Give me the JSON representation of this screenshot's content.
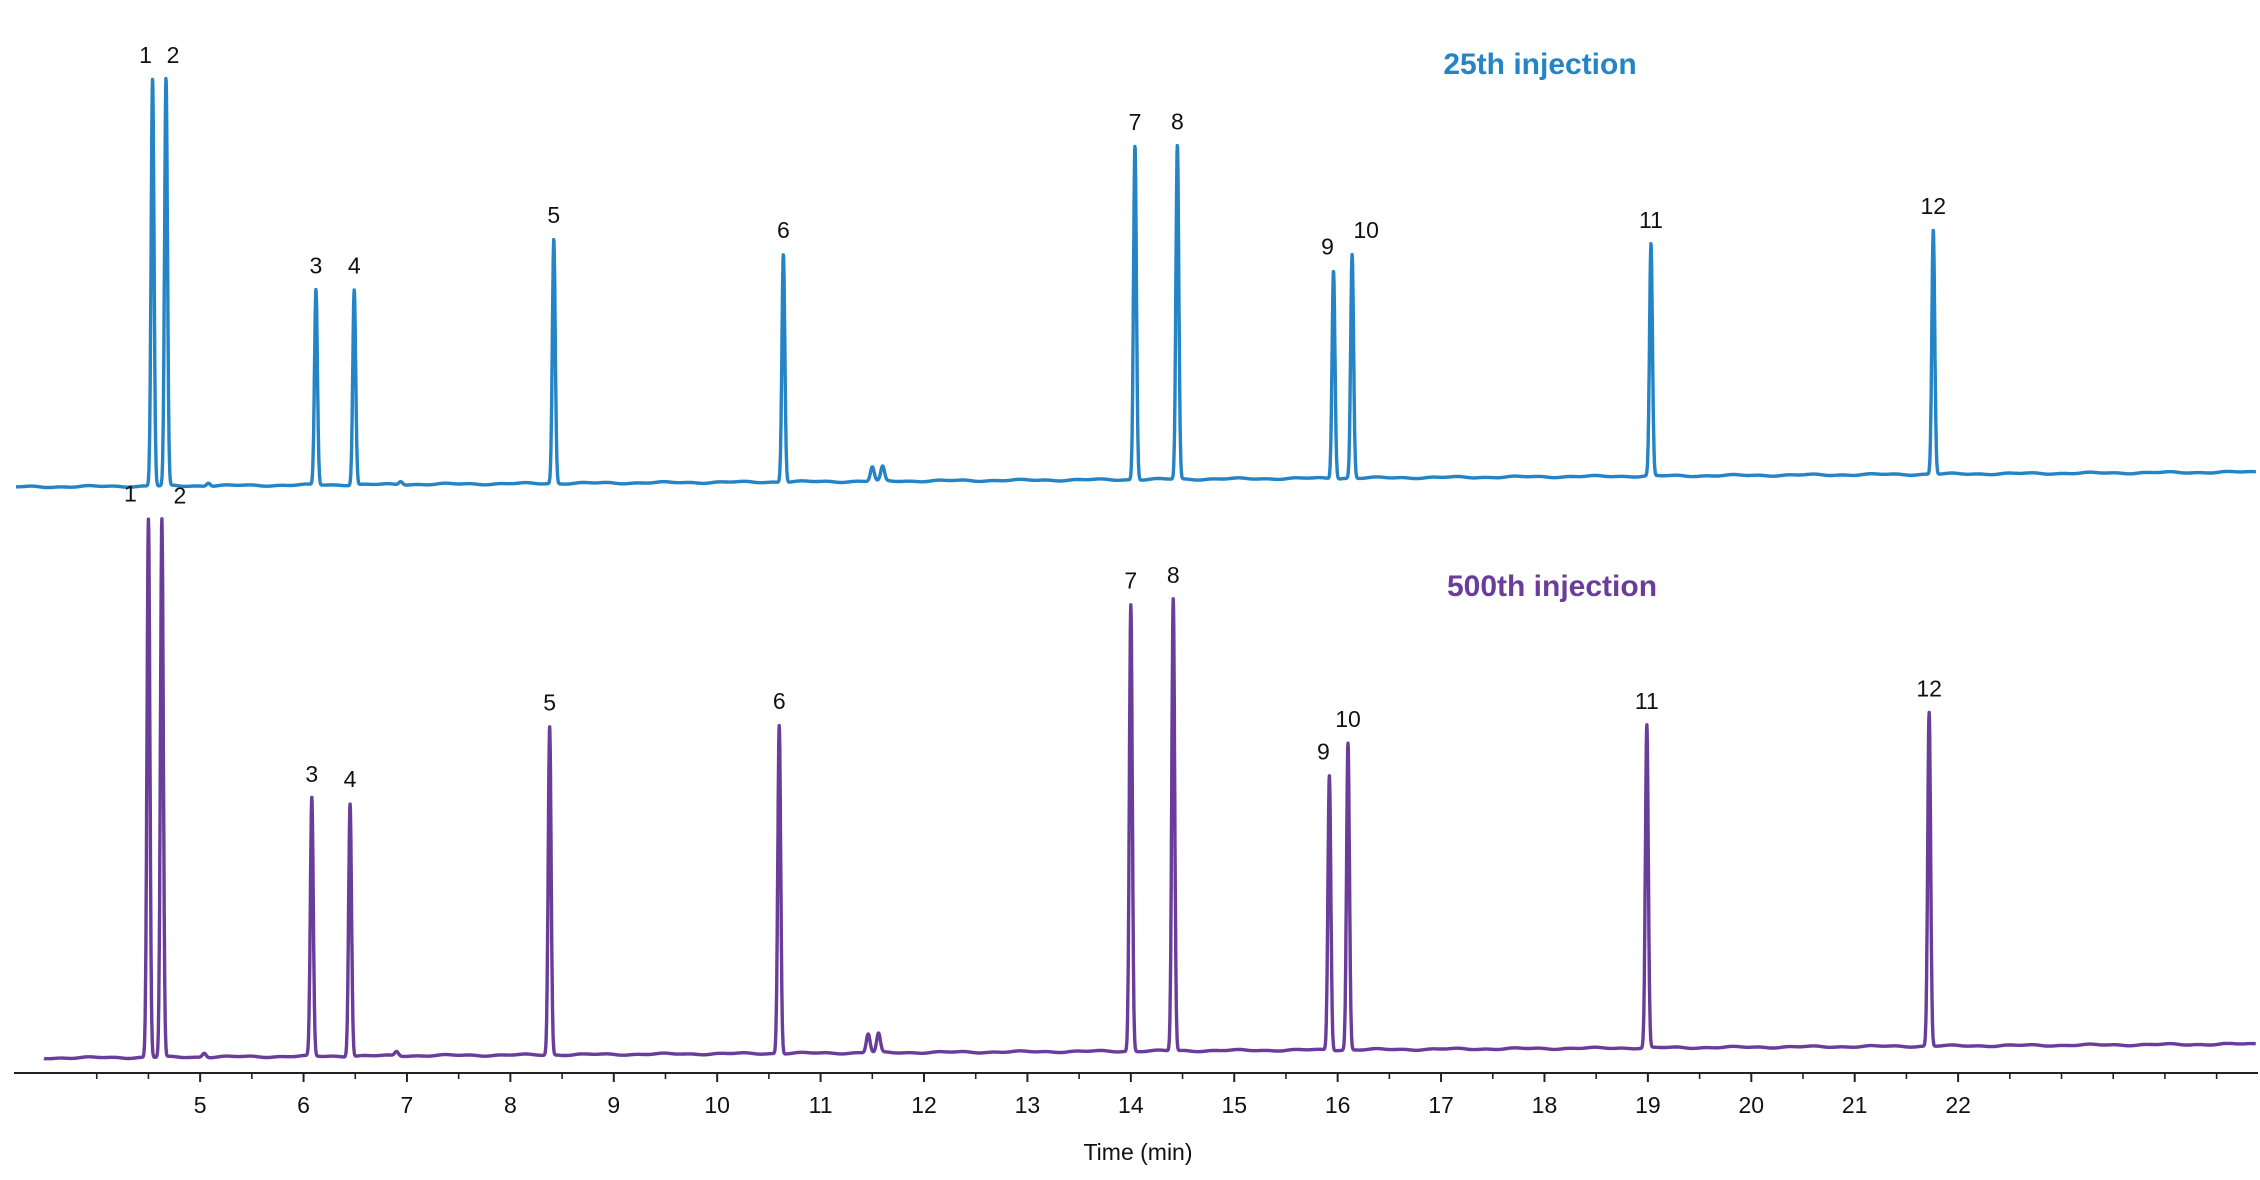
{
  "chart_data": {
    "type": "line",
    "title": "",
    "xlabel": "Time (min)",
    "ylabel": "",
    "xlim": [
      3.2,
      24.9
    ],
    "x_ticks": [
      5,
      6,
      7,
      8,
      9,
      10,
      11,
      12,
      13,
      14,
      15,
      16,
      17,
      18,
      19,
      20,
      21,
      22
    ],
    "x_tick_labels": [
      "5",
      "6",
      "7",
      "8",
      "9",
      "10",
      "11",
      "12",
      "13",
      "14",
      "15",
      "16",
      "17",
      "18",
      "19",
      "20",
      "21",
      "22"
    ],
    "minor_ticks": [
      4,
      23,
      24
    ],
    "grid": false,
    "series": [
      {
        "name": "25th injection",
        "color": "#2484c6",
        "peaks": [
          {
            "label": "1",
            "time": 4.54,
            "height": 1.0
          },
          {
            "label": "2",
            "time": 4.67,
            "height": 1.0
          },
          {
            "label": "3",
            "time": 6.12,
            "height": 0.48
          },
          {
            "label": "4",
            "time": 6.49,
            "height": 0.48
          },
          {
            "label": "5",
            "time": 8.42,
            "height": 0.6
          },
          {
            "label": "6",
            "time": 10.64,
            "height": 0.56
          },
          {
            "label": "7",
            "time": 14.04,
            "height": 0.82
          },
          {
            "label": "8",
            "time": 14.45,
            "height": 0.82
          },
          {
            "label": "9",
            "time": 15.96,
            "height": 0.51
          },
          {
            "label": "10",
            "time": 16.14,
            "height": 0.55
          },
          {
            "label": "11",
            "time": 19.03,
            "height": 0.57
          },
          {
            "label": "12",
            "time": 21.76,
            "height": 0.6
          }
        ]
      },
      {
        "name": "500th injection",
        "color": "#6a3d9a",
        "peaks": [
          {
            "label": "1",
            "time": 4.5,
            "height": 1.0
          },
          {
            "label": "2",
            "time": 4.63,
            "height": 1.0
          },
          {
            "label": "3",
            "time": 6.08,
            "height": 0.48
          },
          {
            "label": "4",
            "time": 6.45,
            "height": 0.47
          },
          {
            "label": "5",
            "time": 8.38,
            "height": 0.61
          },
          {
            "label": "6",
            "time": 10.6,
            "height": 0.61
          },
          {
            "label": "7",
            "time": 14.0,
            "height": 0.83
          },
          {
            "label": "8",
            "time": 14.41,
            "height": 0.84
          },
          {
            "label": "9",
            "time": 15.92,
            "height": 0.51
          },
          {
            "label": "10",
            "time": 16.1,
            "height": 0.57
          },
          {
            "label": "11",
            "time": 18.99,
            "height": 0.6
          },
          {
            "label": "12",
            "time": 21.72,
            "height": 0.62
          }
        ]
      }
    ]
  }
}
